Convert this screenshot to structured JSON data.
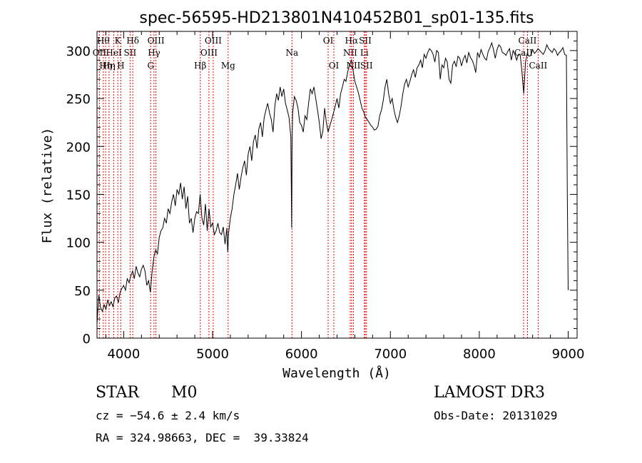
{
  "chart_data": {
    "type": "line",
    "title": "spec-56595-HD213801N410452B01_sp01-135.fits",
    "xlabel": "Wavelength (Å)",
    "ylabel": "Flux (relative)",
    "xlim": [
      3700,
      9100
    ],
    "ylim": [
      0,
      320
    ],
    "xticks": [
      4000,
      5000,
      6000,
      7000,
      8000,
      9000
    ],
    "yticks": [
      0,
      50,
      100,
      150,
      200,
      250,
      300
    ],
    "grid": false,
    "series": [
      {
        "values_x": [
          3700,
          3720,
          3740,
          3760,
          3780,
          3800,
          3820,
          3840,
          3860,
          3880,
          3900,
          3920,
          3940,
          3960,
          3980,
          4000,
          4020,
          4040,
          4060,
          4080,
          4100,
          4120,
          4140,
          4160,
          4180,
          4200,
          4220,
          4240,
          4260,
          4280,
          4300,
          4320,
          4340,
          4360,
          4380,
          4400,
          4420,
          4440,
          4460,
          4480,
          4500,
          4520,
          4540,
          4560,
          4580,
          4600,
          4620,
          4640,
          4660,
          4680,
          4700,
          4720,
          4740,
          4760,
          4780,
          4800,
          4820,
          4840,
          4860,
          4880,
          4900,
          4920,
          4940,
          4960,
          4980,
          5000,
          5020,
          5040,
          5060,
          5080,
          5100,
          5120,
          5140,
          5160,
          5170,
          5180,
          5200,
          5220,
          5240,
          5260,
          5280,
          5300,
          5320,
          5340,
          5360,
          5380,
          5400,
          5420,
          5440,
          5460,
          5480,
          5500,
          5520,
          5540,
          5560,
          5580,
          5600,
          5620,
          5640,
          5660,
          5680,
          5700,
          5720,
          5740,
          5760,
          5780,
          5800,
          5820,
          5840,
          5860,
          5880,
          5890,
          5893,
          5896,
          5900,
          5920,
          5940,
          5960,
          5980,
          6000,
          6020,
          6040,
          6060,
          6080,
          6100,
          6120,
          6140,
          6160,
          6180,
          6200,
          6220,
          6240,
          6260,
          6280,
          6300,
          6320,
          6340,
          6360,
          6380,
          6400,
          6420,
          6440,
          6460,
          6480,
          6500,
          6520,
          6540,
          6563,
          6580,
          6600,
          6620,
          6640,
          6660,
          6680,
          6700,
          6720,
          6740,
          6760,
          6780,
          6800,
          6820,
          6840,
          6860,
          6880,
          6900,
          6920,
          6940,
          6960,
          6980,
          7000,
          7020,
          7040,
          7060,
          7080,
          7100,
          7120,
          7140,
          7160,
          7180,
          7200,
          7220,
          7240,
          7260,
          7280,
          7300,
          7320,
          7340,
          7360,
          7380,
          7400,
          7420,
          7440,
          7460,
          7480,
          7500,
          7520,
          7540,
          7560,
          7580,
          7600,
          7620,
          7640,
          7660,
          7680,
          7700,
          7720,
          7740,
          7760,
          7780,
          7800,
          7820,
          7840,
          7860,
          7880,
          7900,
          7920,
          7940,
          7960,
          7980,
          8000,
          8020,
          8040,
          8060,
          8080,
          8100,
          8120,
          8140,
          8160,
          8180,
          8200,
          8220,
          8240,
          8260,
          8280,
          8300,
          8320,
          8340,
          8360,
          8380,
          8400,
          8420,
          8440,
          8460,
          8480,
          8500,
          8520,
          8540,
          8560,
          8580,
          8600,
          8620,
          8640,
          8660,
          8680,
          8700,
          8720,
          8740,
          8760,
          8780,
          8800,
          8820,
          8840,
          8860,
          8880,
          8900,
          8920,
          8940,
          8960,
          8980,
          8990,
          9000
        ],
        "values_y": [
          15,
          45,
          32,
          28,
          35,
          30,
          40,
          34,
          38,
          33,
          42,
          44,
          37,
          48,
          52,
          55,
          50,
          62,
          58,
          65,
          70,
          62,
          75,
          68,
          64,
          72,
          76,
          70,
          55,
          60,
          48,
          70,
          85,
          92,
          88,
          105,
          112,
          115,
          125,
          120,
          135,
          130,
          142,
          150,
          138,
          155,
          150,
          162,
          145,
          158,
          135,
          148,
          120,
          125,
          110,
          125,
          132,
          130,
          150,
          125,
          118,
          140,
          112,
          135,
          116,
          120,
          108,
          112,
          120,
          110,
          108,
          116,
          98,
          115,
          90,
          110,
          125,
          135,
          150,
          160,
          172,
          155,
          168,
          178,
          185,
          170,
          192,
          200,
          185,
          205,
          212,
          198,
          218,
          225,
          210,
          230,
          238,
          245,
          235,
          228,
          215,
          242,
          255,
          248,
          262,
          252,
          260,
          245,
          238,
          230,
          210,
          115,
          190,
          215,
          235,
          252,
          248,
          240,
          225,
          222,
          215,
          232,
          228,
          245,
          260,
          255,
          262,
          250,
          238,
          225,
          208,
          216,
          240,
          225,
          215,
          222,
          228,
          235,
          242,
          250,
          240,
          255,
          262,
          270,
          268,
          278,
          285,
          290,
          280,
          268,
          262,
          256,
          248,
          240,
          236,
          230,
          228,
          225,
          222,
          220,
          217,
          218,
          221,
          232,
          238,
          248,
          262,
          270,
          255,
          245,
          250,
          238,
          230,
          225,
          232,
          242,
          255,
          265,
          270,
          262,
          268,
          275,
          280,
          272,
          282,
          285,
          290,
          282,
          296,
          292,
          298,
          302,
          300,
          296,
          288,
          300,
          298,
          270,
          285,
          282,
          292,
          288,
          270,
          266,
          285,
          289,
          283,
          294,
          292,
          284,
          291,
          295,
          287,
          298,
          293,
          290,
          285,
          277,
          298,
          293,
          301,
          296,
          292,
          290,
          299,
          303,
          308,
          301,
          292,
          301,
          306,
          304,
          298,
          297,
          295,
          299,
          302,
          290,
          300,
          296,
          290,
          296,
          296,
          278,
          255,
          288,
          297,
          294,
          295,
          301,
          297,
          299,
          302,
          300,
          298,
          296,
          300,
          306,
          302,
          300,
          298,
          302,
          300,
          295,
          298,
          300,
          303,
          296,
          295,
          150,
          50
        ],
        "color": "#000000"
      }
    ],
    "line_markers": [
      {
        "w": 3727,
        "label": "OII",
        "row": 2,
        "color": "#ff0000"
      },
      {
        "w": 3770,
        "label": "Hθ",
        "row": 1,
        "color": "#ff0000"
      },
      {
        "w": 3797,
        "label": "Hη",
        "row": 3,
        "color": "#ff0000"
      },
      {
        "w": 3835,
        "label": "Hη",
        "row": 3,
        "color": "#ff0000"
      },
      {
        "w": 3889,
        "label": "HeI",
        "row": 2,
        "color": "#ff0000"
      },
      {
        "w": 3934,
        "label": "K",
        "row": 1,
        "color": "#ff0000"
      },
      {
        "w": 3968,
        "label": "H",
        "row": 3,
        "color": "#ff0000"
      },
      {
        "w": 4072,
        "label": "SII",
        "row": 2,
        "color": "#ff0000"
      },
      {
        "w": 4102,
        "label": "Hδ",
        "row": 1,
        "color": "#ff0000"
      },
      {
        "w": 4304,
        "label": "G",
        "row": 3,
        "color": "#ff0000"
      },
      {
        "w": 4341,
        "label": "Hγ",
        "row": 2,
        "color": "#ff0000"
      },
      {
        "w": 4363,
        "label": "OIII",
        "row": 1,
        "color": "#ff0000"
      },
      {
        "w": 4861,
        "label": "Hβ",
        "row": 3,
        "color": "#ff0000"
      },
      {
        "w": 4959,
        "label": "OIII",
        "row": 2,
        "color": "#ff0000"
      },
      {
        "w": 5007,
        "label": "OIII",
        "row": 1,
        "color": "#ff0000"
      },
      {
        "w": 5175,
        "label": "Mg",
        "row": 3,
        "color": "#ff0000"
      },
      {
        "w": 5893,
        "label": "Na",
        "row": 2,
        "color": "#ff0000"
      },
      {
        "w": 6300,
        "label": "OI",
        "row": 1,
        "color": "#ff0000"
      },
      {
        "w": 6364,
        "label": "OI",
        "row": 3,
        "color": "#ff0000"
      },
      {
        "w": 6548,
        "label": "NII",
        "row": 2,
        "color": "#ff0000"
      },
      {
        "w": 6563,
        "label": "Hα",
        "row": 1,
        "color": "#ff0000"
      },
      {
        "w": 6584,
        "label": "NII",
        "row": 3,
        "color": "#ff0000"
      },
      {
        "w": 6707,
        "label": "Li",
        "row": 2,
        "color": "#ff0000"
      },
      {
        "w": 6717,
        "label": "SII",
        "row": 1,
        "color": "#ff0000"
      },
      {
        "w": 6731,
        "label": "SII",
        "row": 3,
        "color": "#ff0000"
      },
      {
        "w": 8498,
        "label": "CaII",
        "row": 2,
        "color": "#ff0000"
      },
      {
        "w": 8542,
        "label": "CaII",
        "row": 1,
        "color": "#ff0000"
      },
      {
        "w": 8662,
        "label": "CaII",
        "row": 3,
        "color": "#ff0000"
      }
    ]
  },
  "info": {
    "object_class": "STAR",
    "subclass": "M0",
    "survey": "LAMOST DR3",
    "redshift": "cz = −54.6 ± 2.4 km/s",
    "obs_date": "Obs-Date: 20131029",
    "coords": "RA = 324.98663, DEC =  39.33824"
  }
}
